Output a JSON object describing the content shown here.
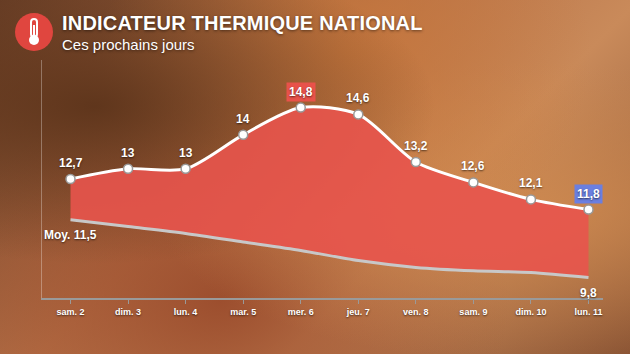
{
  "chart_data": {
    "type": "area",
    "title": "INDICATEUR THERMIQUE NATIONAL",
    "subtitle": "Ces prochains jours",
    "categories": [
      "sam. 2",
      "dim. 3",
      "lun. 4",
      "mar. 5",
      "mer. 6",
      "jeu. 7",
      "ven. 8",
      "sam. 9",
      "dim. 10",
      "lun. 11"
    ],
    "series": [
      {
        "color": "#ffffff",
        "marker": "circle",
        "line_style": "spline",
        "values": [
          12.7,
          13,
          13,
          14,
          14.8,
          14.6,
          13.2,
          12.6,
          12.1,
          11.8
        ],
        "value_labels": [
          "12,7",
          "13",
          "13",
          "14",
          "14,8",
          "14,6",
          "13,2",
          "12,6",
          "12,1",
          "11,8"
        ]
      },
      {
        "color": "#c8c8c8",
        "line_style": "spline",
        "values": [
          11.5,
          11.3,
          11.1,
          10.85,
          10.6,
          10.3,
          10.1,
          10.0,
          9.95,
          9.8
        ],
        "value_labels": [
          "Moy. 11,5",
          null,
          null,
          null,
          null,
          null,
          null,
          null,
          null,
          "9,8"
        ]
      }
    ],
    "ylim": [
      9.2,
      16.2
    ],
    "yticks": [],
    "tick_labels": "x",
    "data_labels": true,
    "grid": false
  }
}
